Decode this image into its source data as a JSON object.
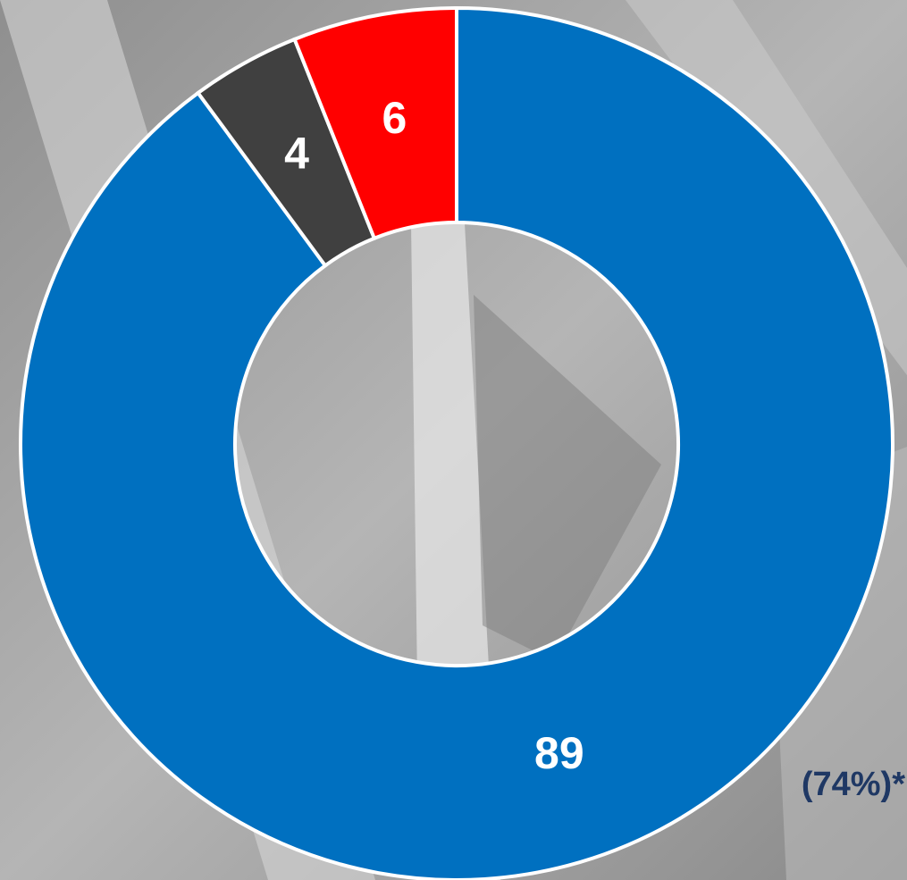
{
  "chart_data": {
    "type": "donut",
    "values": [
      89,
      4,
      6
    ],
    "colors": [
      "#0070c0",
      "#404040",
      "#ff0000"
    ],
    "annotation": "(74%)*"
  }
}
